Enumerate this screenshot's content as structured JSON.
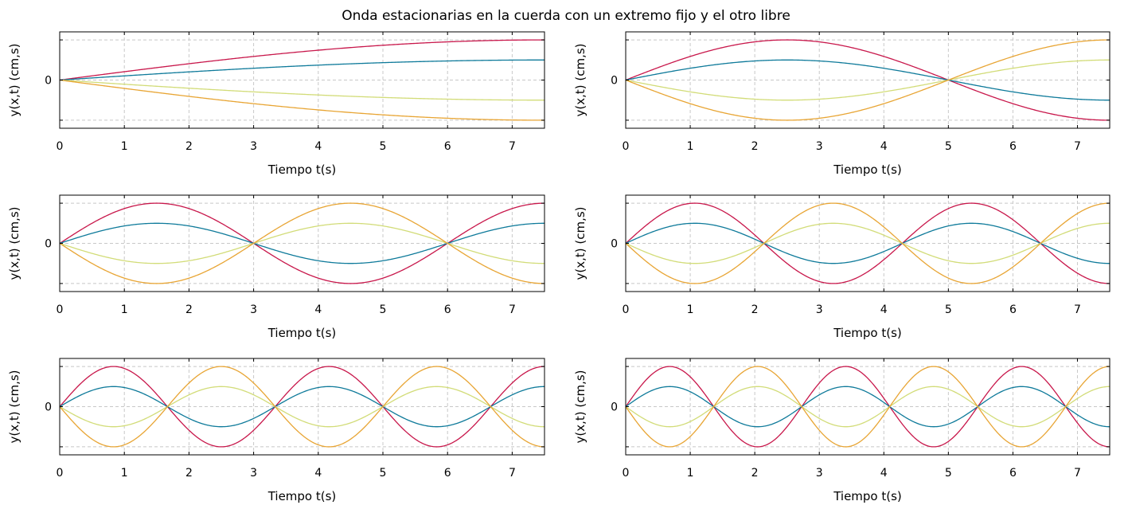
{
  "title": "Onda estacionarias en la cuerda con un extremo fijo y el otro libre",
  "colors": {
    "series": [
      "#c8174b",
      "#0e7a9a",
      "#d2dc78",
      "#e8a534"
    ],
    "grid": "#c8c8c8",
    "frame": "#000000",
    "background": "#ffffff"
  },
  "chart_data": [
    {
      "type": "line",
      "mode_n": 1,
      "period_s": 30,
      "xlabel": "Tiempo t(s)",
      "ylabel": "y(x,t) (cm,s)",
      "xlim": [
        0,
        7.5
      ],
      "ylim": [
        -1.2,
        1.2
      ],
      "x_ticks": [
        "0",
        "1",
        "2",
        "3",
        "4",
        "5",
        "6",
        "7"
      ],
      "y_ticks": [
        "0"
      ],
      "grid": true,
      "series": [
        {
          "amplitude": 1.0,
          "color": "#c8174b"
        },
        {
          "amplitude": 0.5,
          "color": "#0e7a9a"
        },
        {
          "amplitude": -0.5,
          "color": "#d2dc78"
        },
        {
          "amplitude": -1.0,
          "color": "#e8a534"
        }
      ]
    },
    {
      "type": "line",
      "mode_n": 2,
      "period_s": 10,
      "xlabel": "Tiempo t(s)",
      "ylabel": "y(x,t) (cm,s)",
      "xlim": [
        0,
        7.5
      ],
      "ylim": [
        -1.2,
        1.2
      ],
      "x_ticks": [
        "0",
        "1",
        "2",
        "3",
        "4",
        "5",
        "6",
        "7"
      ],
      "y_ticks": [
        "0"
      ],
      "grid": true,
      "series": [
        {
          "amplitude": 1.0,
          "color": "#c8174b"
        },
        {
          "amplitude": 0.5,
          "color": "#0e7a9a"
        },
        {
          "amplitude": -0.5,
          "color": "#d2dc78"
        },
        {
          "amplitude": -1.0,
          "color": "#e8a534"
        }
      ]
    },
    {
      "type": "line",
      "mode_n": 3,
      "period_s": 6,
      "xlabel": "Tiempo t(s)",
      "ylabel": "y(x,t) (cm,s)",
      "xlim": [
        0,
        7.5
      ],
      "ylim": [
        -1.2,
        1.2
      ],
      "x_ticks": [
        "0",
        "1",
        "2",
        "3",
        "4",
        "5",
        "6",
        "7"
      ],
      "y_ticks": [
        "0"
      ],
      "grid": true,
      "series": [
        {
          "amplitude": 1.0,
          "color": "#c8174b"
        },
        {
          "amplitude": 0.5,
          "color": "#0e7a9a"
        },
        {
          "amplitude": -0.5,
          "color": "#d2dc78"
        },
        {
          "amplitude": -1.0,
          "color": "#e8a534"
        }
      ]
    },
    {
      "type": "line",
      "mode_n": 4,
      "period_s": 4.2857,
      "xlabel": "Tiempo t(s)",
      "ylabel": "y(x,t) (cm,s)",
      "xlim": [
        0,
        7.5
      ],
      "ylim": [
        -1.2,
        1.2
      ],
      "x_ticks": [
        "0",
        "1",
        "2",
        "3",
        "4",
        "5",
        "6",
        "7"
      ],
      "y_ticks": [
        "0"
      ],
      "grid": true,
      "series": [
        {
          "amplitude": 1.0,
          "color": "#c8174b"
        },
        {
          "amplitude": 0.5,
          "color": "#0e7a9a"
        },
        {
          "amplitude": -0.5,
          "color": "#d2dc78"
        },
        {
          "amplitude": -1.0,
          "color": "#e8a534"
        }
      ]
    },
    {
      "type": "line",
      "mode_n": 5,
      "period_s": 3.3333,
      "xlabel": "Tiempo t(s)",
      "ylabel": "y(x,t) (cm,s)",
      "xlim": [
        0,
        7.5
      ],
      "ylim": [
        -1.2,
        1.2
      ],
      "x_ticks": [
        "0",
        "1",
        "2",
        "3",
        "4",
        "5",
        "6",
        "7"
      ],
      "y_ticks": [
        "0"
      ],
      "grid": true,
      "series": [
        {
          "amplitude": 1.0,
          "color": "#c8174b"
        },
        {
          "amplitude": 0.5,
          "color": "#0e7a9a"
        },
        {
          "amplitude": -0.5,
          "color": "#d2dc78"
        },
        {
          "amplitude": -1.0,
          "color": "#e8a534"
        }
      ]
    },
    {
      "type": "line",
      "mode_n": 6,
      "period_s": 2.7273,
      "xlabel": "Tiempo t(s)",
      "ylabel": "y(x,t) (cm,s)",
      "xlim": [
        0,
        7.5
      ],
      "ylim": [
        -1.2,
        1.2
      ],
      "x_ticks": [
        "0",
        "1",
        "2",
        "3",
        "4",
        "5",
        "6",
        "7"
      ],
      "y_ticks": [
        "0"
      ],
      "grid": true,
      "series": [
        {
          "amplitude": 1.0,
          "color": "#c8174b"
        },
        {
          "amplitude": 0.5,
          "color": "#0e7a9a"
        },
        {
          "amplitude": -0.5,
          "color": "#d2dc78"
        },
        {
          "amplitude": -1.0,
          "color": "#e8a534"
        }
      ]
    }
  ]
}
